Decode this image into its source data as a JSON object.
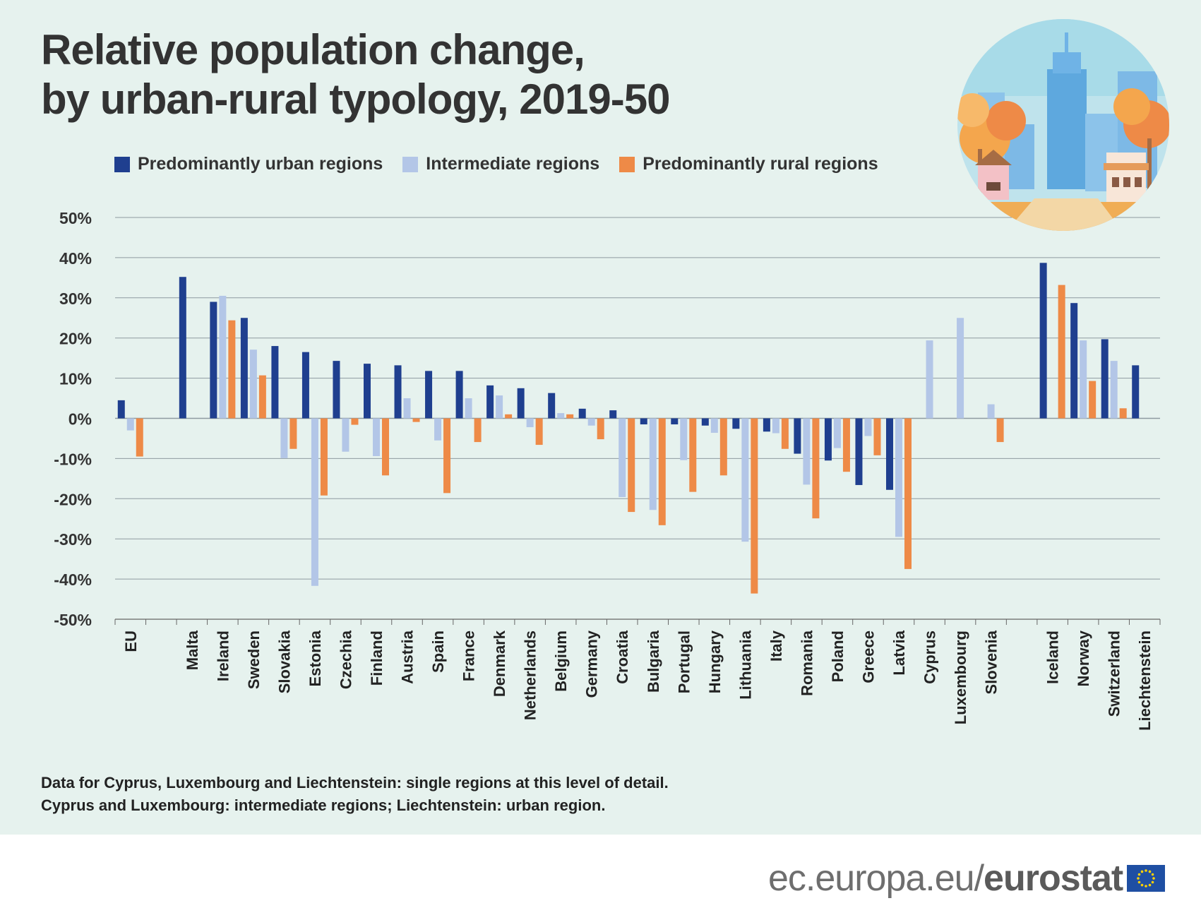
{
  "title": {
    "line1": "Relative population change,",
    "line2": "by urban-rural typology, 2019-50"
  },
  "legend": {
    "urban": "Predominantly urban regions",
    "intermediate": "Intermediate regions",
    "rural": "Predominantly rural regions"
  },
  "colors": {
    "urban": "#1f3f8f",
    "intermediate": "#b3c6e7",
    "rural": "#ee8a47",
    "background": "#e6f2ee",
    "grid": "#8e9aa0"
  },
  "chart_data": {
    "type": "bar",
    "title": "Relative population change, by urban-rural typology, 2019-50",
    "xlabel": "",
    "ylabel": "",
    "ylim": [
      -50,
      50
    ],
    "yticks": [
      "50%",
      "40%",
      "30%",
      "20%",
      "10%",
      "0%",
      "-10%",
      "-20%",
      "-30%",
      "-40%",
      "-50%"
    ],
    "ytick_values": [
      50,
      40,
      30,
      20,
      10,
      0,
      -10,
      -20,
      -30,
      -40,
      -50
    ],
    "grid": true,
    "legend_position": "top",
    "categories": [
      "EU",
      "",
      "Malta",
      "Ireland",
      "Sweden",
      "Slovakia",
      "Estonia",
      "Czechia",
      "Finland",
      "Austria",
      "Spain",
      "France",
      "Denmark",
      "Netherlands",
      "Belgium",
      "Germany",
      "Croatia",
      "Bulgaria",
      "Portugal",
      "Hungary",
      "Lithuania",
      "Italy",
      "Romania",
      "Poland",
      "Greece",
      "Latvia",
      "Cyprus",
      "Luxembourg",
      "Slovenia",
      "",
      "Iceland",
      "Norway",
      "Switzerland",
      "Liechtenstein"
    ],
    "series": [
      {
        "name": "Predominantly urban regions",
        "values": [
          4.5,
          null,
          35.2,
          29.0,
          25.0,
          18.0,
          16.5,
          14.3,
          13.6,
          13.2,
          11.8,
          11.8,
          8.2,
          7.5,
          6.3,
          2.4,
          2.0,
          -1.5,
          -1.5,
          -1.8,
          -2.6,
          -3.3,
          -8.8,
          -10.5,
          -16.6,
          -17.8,
          null,
          null,
          null,
          null,
          38.7,
          28.7,
          19.7,
          13.2
        ]
      },
      {
        "name": "Intermediate regions",
        "values": [
          -3.0,
          null,
          null,
          30.5,
          17.1,
          -9.9,
          -41.7,
          -8.3,
          -9.4,
          5.0,
          -5.5,
          5.0,
          5.7,
          -2.2,
          1.3,
          -1.8,
          -19.6,
          -22.8,
          -10.4,
          -3.6,
          -30.7,
          -3.7,
          -16.5,
          -7.4,
          -4.4,
          -29.5,
          19.4,
          25.0,
          3.5,
          null,
          null,
          19.4,
          14.3,
          null
        ]
      },
      {
        "name": "Predominantly rural regions",
        "values": [
          -9.5,
          null,
          null,
          24.4,
          10.7,
          -7.6,
          -19.2,
          -1.6,
          -14.2,
          -0.9,
          -18.6,
          -5.9,
          1.0,
          -6.6,
          1.0,
          -5.2,
          -23.3,
          -26.6,
          -18.3,
          -14.2,
          -43.6,
          -7.6,
          -24.9,
          -13.3,
          -9.2,
          -37.5,
          null,
          null,
          -5.9,
          null,
          33.2,
          9.3,
          2.5,
          null
        ]
      }
    ]
  },
  "notes": {
    "line1": "Data for Cyprus, Luxembourg and Liechtenstein: single regions at this level of detail.",
    "line2": "Cyprus and Luxembourg: intermediate regions; Liechtenstein: urban region."
  },
  "footer": {
    "domain": "ec.europa.eu/",
    "brand": "eurostat"
  }
}
